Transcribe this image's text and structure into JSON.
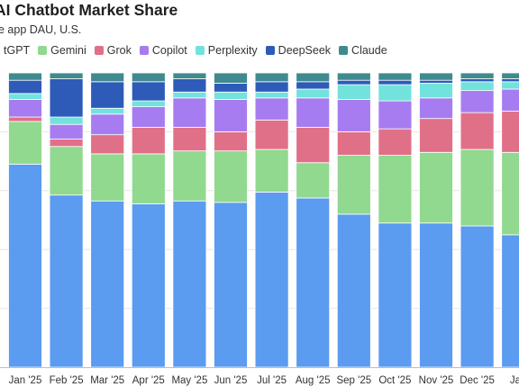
{
  "header": {
    "title": "AI Chatbot Market Share",
    "subtitle": "e app DAU, U.S."
  },
  "chart_data": {
    "type": "bar",
    "stacked": true,
    "normalized": true,
    "title": "AI Chatbot Market Share",
    "subtitle": "e app DAU, U.S.",
    "xlabel": "",
    "ylabel": "",
    "ylim": [
      0,
      100
    ],
    "grid": true,
    "legend_position": "top",
    "categories": [
      "Jan '25",
      "Feb '25",
      "Mar '25",
      "Apr '25",
      "May '25",
      "Jun '25",
      "Jul '25",
      "Aug '25",
      "Sep '25",
      "Oct '25",
      "Nov '25",
      "Dec '25",
      "Jan"
    ],
    "series": [
      {
        "name": "ChatGPT",
        "legend_label": "tGPT",
        "color": "#5b9bf0",
        "values": [
          69.0,
          58.5,
          56.5,
          55.5,
          56.5,
          56.0,
          59.5,
          57.5,
          52.0,
          49.0,
          49.0,
          48.0,
          45.0
        ]
      },
      {
        "name": "Gemini",
        "legend_label": "Gemini",
        "color": "#90d98f",
        "values": [
          14.5,
          16.5,
          16.0,
          17.0,
          17.0,
          17.5,
          14.5,
          12.0,
          20.0,
          23.0,
          24.0,
          26.0,
          28.0
        ]
      },
      {
        "name": "Grok",
        "legend_label": "Grok",
        "color": "#e07088",
        "values": [
          1.5,
          2.5,
          6.5,
          9.0,
          8.0,
          6.5,
          10.0,
          12.0,
          8.0,
          9.0,
          11.5,
          12.5,
          14.0
        ]
      },
      {
        "name": "Copilot",
        "legend_label": "Copilot",
        "color": "#a77cf0",
        "values": [
          6.0,
          5.0,
          7.0,
          7.0,
          10.0,
          11.0,
          7.5,
          10.0,
          11.0,
          9.5,
          7.0,
          7.5,
          7.5
        ]
      },
      {
        "name": "Perplexity",
        "legend_label": "Perplexity",
        "color": "#72e2dc",
        "values": [
          2.0,
          2.5,
          2.0,
          2.0,
          2.0,
          2.5,
          2.0,
          3.0,
          5.0,
          5.5,
          5.0,
          3.0,
          2.5
        ]
      },
      {
        "name": "DeepSeek",
        "legend_label": "DeepSeek",
        "color": "#2e5bb8",
        "values": [
          4.5,
          13.0,
          9.0,
          6.5,
          4.5,
          3.0,
          3.5,
          2.5,
          1.5,
          1.5,
          1.0,
          1.0,
          1.0
        ]
      },
      {
        "name": "Claude",
        "legend_label": "Claude",
        "color": "#3f8a8f",
        "values": [
          2.5,
          2.0,
          3.0,
          3.0,
          2.0,
          3.5,
          3.0,
          3.0,
          2.5,
          2.5,
          2.5,
          2.0,
          2.0
        ]
      }
    ]
  }
}
